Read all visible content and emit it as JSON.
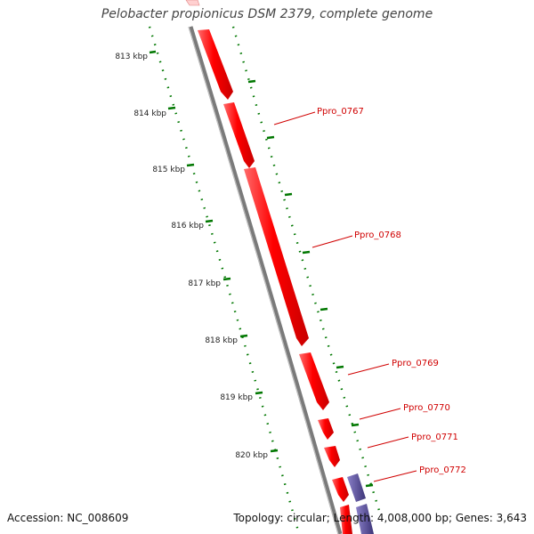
{
  "title": "Pelobacter propionicus DSM 2379, complete genome",
  "scale_ticks": [
    {
      "label": "813 kbp",
      "kbp": 813
    },
    {
      "label": "814 kbp",
      "kbp": 814
    },
    {
      "label": "815 kbp",
      "kbp": 815
    },
    {
      "label": "816 kbp",
      "kbp": 816
    },
    {
      "label": "817 kbp",
      "kbp": 817
    },
    {
      "label": "818 kbp",
      "kbp": 818
    },
    {
      "label": "819 kbp",
      "kbp": 819
    },
    {
      "label": "820 kbp",
      "kbp": 820
    }
  ],
  "genes": [
    {
      "label": "Ppro_0767"
    },
    {
      "label": "Ppro_0768"
    },
    {
      "label": "Ppro_0769"
    },
    {
      "label": "Ppro_0770"
    },
    {
      "label": "Ppro_0771"
    },
    {
      "label": "Ppro_0772"
    }
  ],
  "colors": {
    "forward_gene": "#ff0000",
    "reverse_gene": "#5a4f9a",
    "backbone": "#888888",
    "ruler": "#007700",
    "gene_label": "#d00000"
  },
  "footer": {
    "accession": "Accession: NC_008609",
    "summary": "Topology: circular; Length: 4,008,000 bp; Genes: 3,643"
  }
}
